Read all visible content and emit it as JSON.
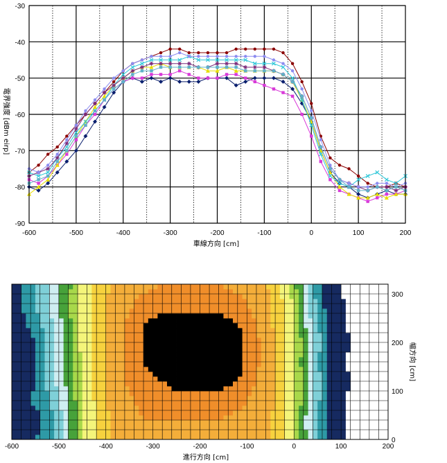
{
  "chart_data": [
    {
      "type": "line",
      "xlabel": "車線方向 [cm]",
      "ylabel": "電界強度 [dBm eirp]",
      "xlim": [
        -600,
        200
      ],
      "ylim": [
        -90,
        -30
      ],
      "xticks": [
        -600,
        -500,
        -400,
        -300,
        -200,
        -100,
        0,
        100,
        200
      ],
      "yticks": [
        -30,
        -40,
        -50,
        -60,
        -70,
        -80,
        -90
      ],
      "minor_x_dotted": [
        -550,
        -450,
        -350,
        -250,
        -150,
        -50,
        50,
        150
      ],
      "x": [
        -600,
        -580,
        -560,
        -540,
        -520,
        -500,
        -480,
        -460,
        -440,
        -420,
        -400,
        -380,
        -360,
        -340,
        -320,
        -300,
        -280,
        -260,
        -240,
        -220,
        -200,
        -180,
        -160,
        -140,
        -120,
        -100,
        -80,
        -60,
        -40,
        -20,
        0,
        20,
        40,
        60,
        80,
        100,
        120,
        140,
        160,
        180,
        200
      ],
      "series": [
        {
          "color": "#8b0000",
          "marker": "circle",
          "values": [
            -76,
            -74,
            -71,
            -69,
            -66,
            -63,
            -60,
            -57,
            -54,
            -51,
            -48,
            -46,
            -45,
            -44,
            -43,
            -42,
            -42,
            -43,
            -43,
            -43,
            -43,
            -43,
            -42,
            -42,
            -42,
            -42,
            -42,
            -43,
            -46,
            -51,
            -57,
            -66,
            -72,
            -74,
            -75,
            -77,
            -79,
            -80,
            -80,
            -79,
            -80
          ]
        },
        {
          "color": "#0a1f6e",
          "marker": "diamond",
          "values": [
            -80,
            -81,
            -79,
            -76,
            -73,
            -70,
            -66,
            -62,
            -58,
            -54,
            -51,
            -50,
            -51,
            -50,
            -51,
            -50,
            -51,
            -51,
            -51,
            -50,
            -50,
            -50,
            -52,
            -51,
            -50,
            -50,
            -50,
            -51,
            -53,
            -57,
            -62,
            -70,
            -76,
            -79,
            -80,
            -82,
            -83,
            -82,
            -81,
            -82,
            -82
          ]
        },
        {
          "color": "#d83ad8",
          "marker": "square",
          "values": [
            -78,
            -79,
            -77,
            -74,
            -71,
            -67,
            -63,
            -60,
            -56,
            -53,
            -51,
            -50,
            -50,
            -49,
            -49,
            -49,
            -48,
            -49,
            -50,
            -50,
            -50,
            -49,
            -49,
            -50,
            -51,
            -52,
            -53,
            -54,
            -55,
            -60,
            -66,
            -73,
            -78,
            -81,
            -82,
            -83,
            -84,
            -83,
            -82,
            -82,
            -81
          ]
        },
        {
          "color": "#e6dc00",
          "marker": "triangle",
          "values": [
            -82,
            -80,
            -78,
            -74,
            -70,
            -66,
            -62,
            -58,
            -55,
            -52,
            -50,
            -48,
            -47,
            -47,
            -46,
            -47,
            -47,
            -47,
            -47,
            -48,
            -48,
            -47,
            -48,
            -48,
            -48,
            -48,
            -48,
            -49,
            -51,
            -56,
            -62,
            -70,
            -76,
            -80,
            -82,
            -83,
            -83,
            -82,
            -83,
            -82,
            -82
          ]
        },
        {
          "color": "#2ec7d8",
          "marker": "x",
          "values": [
            -76,
            -77,
            -76,
            -72,
            -69,
            -65,
            -62,
            -59,
            -56,
            -52,
            -49,
            -47,
            -46,
            -45,
            -45,
            -45,
            -45,
            -44,
            -45,
            -45,
            -45,
            -45,
            -45,
            -45,
            -46,
            -46,
            -46,
            -47,
            -50,
            -56,
            -63,
            -71,
            -77,
            -79,
            -80,
            -78,
            -77,
            -76,
            -78,
            -79,
            -77
          ]
        },
        {
          "color": "#7a2a7a",
          "marker": "asterisk",
          "values": [
            -77,
            -76,
            -75,
            -72,
            -68,
            -64,
            -60,
            -57,
            -54,
            -52,
            -50,
            -48,
            -47,
            -46,
            -46,
            -46,
            -46,
            -46,
            -47,
            -47,
            -46,
            -46,
            -46,
            -47,
            -47,
            -47,
            -48,
            -49,
            -51,
            -55,
            -61,
            -69,
            -75,
            -78,
            -79,
            -80,
            -81,
            -80,
            -80,
            -81,
            -80
          ]
        },
        {
          "color": "#8c8cf0",
          "marker": "circle",
          "values": [
            -75,
            -76,
            -74,
            -71,
            -67,
            -63,
            -59,
            -56,
            -53,
            -50,
            -48,
            -46,
            -45,
            -44,
            -44,
            -44,
            -43,
            -44,
            -44,
            -44,
            -44,
            -44,
            -44,
            -44,
            -44,
            -44,
            -45,
            -46,
            -48,
            -53,
            -59,
            -67,
            -74,
            -78,
            -79,
            -80,
            -80,
            -79,
            -79,
            -80,
            -79
          ]
        },
        {
          "color": "#5fb0c8",
          "marker": "square",
          "values": [
            -79,
            -78,
            -77,
            -73,
            -70,
            -66,
            -63,
            -59,
            -56,
            -53,
            -51,
            -49,
            -48,
            -48,
            -47,
            -47,
            -47,
            -47,
            -47,
            -47,
            -47,
            -47,
            -47,
            -48,
            -48,
            -48,
            -48,
            -49,
            -51,
            -55,
            -61,
            -69,
            -75,
            -78,
            -80,
            -81,
            -81,
            -80,
            -81,
            -80,
            -81
          ]
        }
      ]
    },
    {
      "type": "heatmap",
      "xlabel": "進行方向 [cm]",
      "ylabel": "幅方向 [cm]",
      "xlim": [
        -600,
        200
      ],
      "ylim": [
        0,
        320
      ],
      "xticks": [
        -600,
        -500,
        -400,
        -300,
        -200,
        -100,
        0,
        100,
        200
      ],
      "yticks": [
        0,
        100,
        200,
        300
      ],
      "levels": [
        -85,
        -80,
        -77,
        -74,
        -71,
        -68,
        -65,
        -60,
        -55,
        -50,
        -47
      ],
      "colors": [
        "#ffffff",
        "#162a60",
        "#2e9aa6",
        "#7fd0d8",
        "#cfeef2",
        "#47a23a",
        "#a8d84a",
        "#f4f57a",
        "#f7d23e",
        "#f4ae3a",
        "#f08e2a"
      ],
      "x": [
        -600,
        -560,
        -520,
        -480,
        -440,
        -400,
        -360,
        -320,
        -280,
        -240,
        -200,
        -160,
        -120,
        -80,
        -40,
        0,
        40,
        80,
        120,
        160,
        200
      ],
      "y": [
        0,
        40,
        80,
        120,
        160,
        200,
        240,
        280,
        320
      ],
      "z": [
        [
          -84,
          -81,
          -78,
          -72,
          -64,
          -56,
          -52,
          -51,
          -51,
          -51,
          -50,
          -51,
          -51,
          -52,
          -56,
          -65,
          -74,
          -82,
          -86,
          -86,
          -86
        ],
        [
          -84,
          -82,
          -79,
          -72,
          -64,
          -56,
          -52,
          -50,
          -50,
          -50,
          -50,
          -50,
          -51,
          -52,
          -56,
          -65,
          -75,
          -83,
          -86,
          -86,
          -86
        ],
        [
          -83,
          -80,
          -77,
          -71,
          -63,
          -55,
          -51,
          -49,
          -48,
          -48,
          -48,
          -48,
          -49,
          -51,
          -55,
          -64,
          -74,
          -82,
          -86,
          -86,
          -86
        ],
        [
          -84,
          -81,
          -76,
          -70,
          -62,
          -55,
          -50,
          -48,
          -47,
          -46,
          -46,
          -46,
          -47,
          -50,
          -55,
          -64,
          -74,
          -81,
          -85,
          -86,
          -86
        ],
        [
          -85,
          -81,
          -76,
          -70,
          -63,
          -55,
          -50,
          -47,
          -46,
          -46,
          -46,
          -46,
          -46,
          -49,
          -55,
          -64,
          -75,
          -82,
          -86,
          -86,
          -86
        ],
        [
          -84,
          -81,
          -76,
          -69,
          -62,
          -55,
          -50,
          -47,
          -46,
          -46,
          -46,
          -46,
          -46,
          -49,
          -55,
          -64,
          -74,
          -81,
          -85,
          -86,
          -86
        ],
        [
          -83,
          -79,
          -75,
          -69,
          -62,
          -55,
          -50,
          -47,
          -46,
          -46,
          -46,
          -46,
          -47,
          -50,
          -56,
          -65,
          -75,
          -82,
          -86,
          -86,
          -86
        ],
        [
          -82,
          -78,
          -74,
          -68,
          -62,
          -55,
          -51,
          -49,
          -48,
          -48,
          -48,
          -48,
          -49,
          -51,
          -56,
          -66,
          -76,
          -83,
          -86,
          -86,
          -86
        ],
        [
          -82,
          -78,
          -74,
          -69,
          -62,
          -56,
          -52,
          -51,
          -50,
          -50,
          -50,
          -50,
          -51,
          -53,
          -57,
          -67,
          -77,
          -84,
          -86,
          -86,
          -86
        ]
      ]
    }
  ]
}
